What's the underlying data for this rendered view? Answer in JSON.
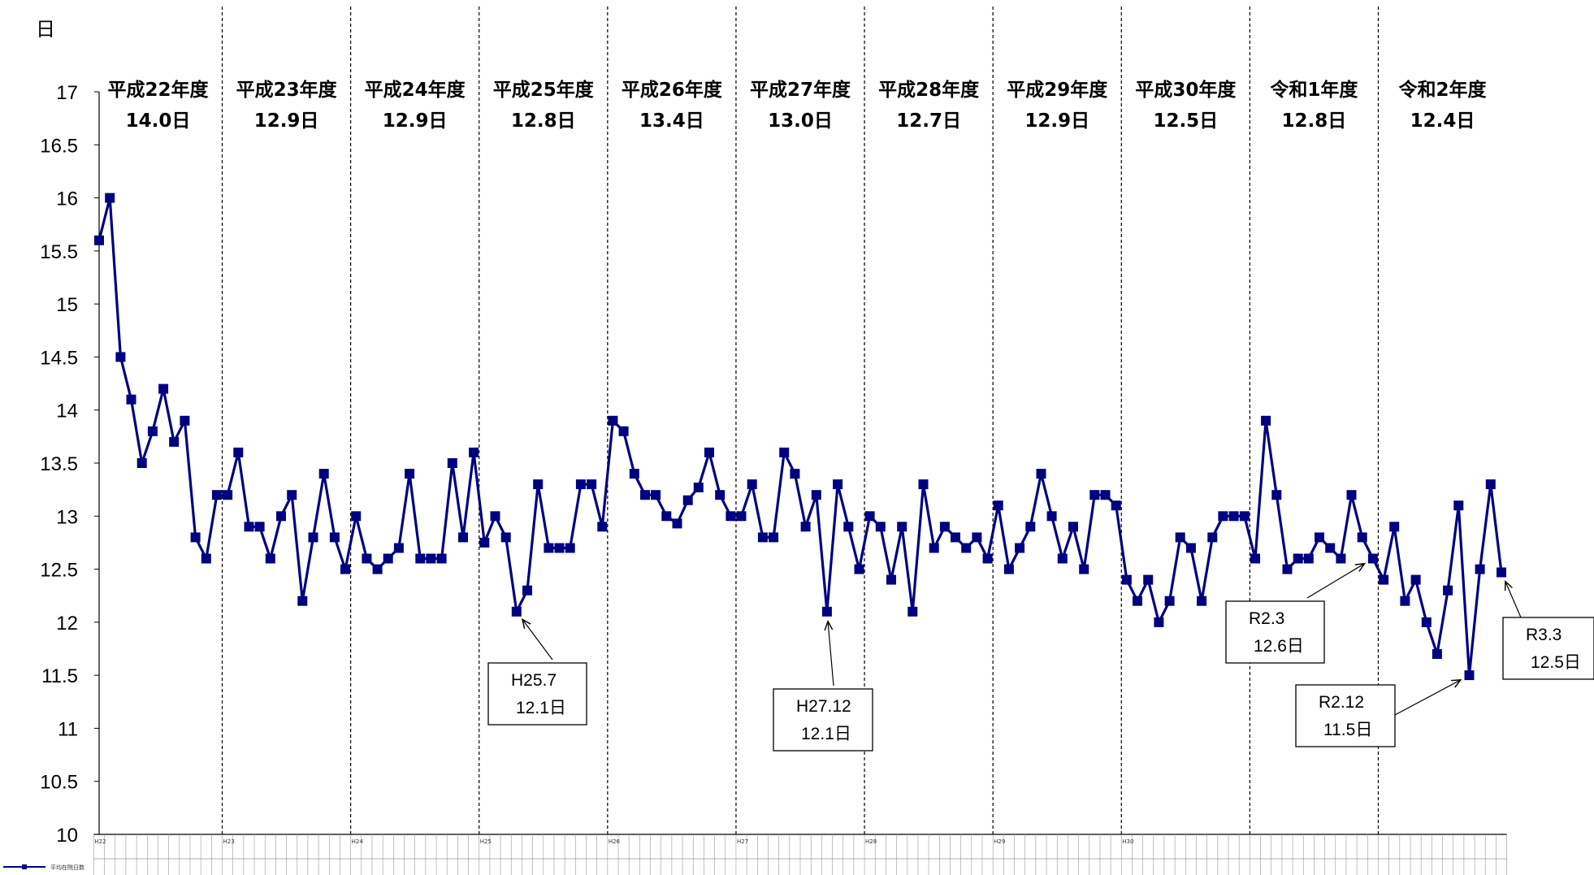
{
  "chart_data": {
    "type": "line",
    "unit_label": "日",
    "ylim": [
      10,
      17
    ],
    "y_ticks": [
      "10",
      "10.5",
      "11",
      "11.5",
      "12",
      "12.5",
      "13",
      "13.5",
      "14",
      "14.5",
      "15",
      "15.5",
      "16",
      "16.5",
      "17"
    ],
    "series": [
      {
        "name": "平均在院日数",
        "color": "#000080",
        "values": [
          15.6,
          16.0,
          14.5,
          14.1,
          13.5,
          13.8,
          14.2,
          13.7,
          13.9,
          12.8,
          12.6,
          13.2,
          13.2,
          13.6,
          12.9,
          12.9,
          12.6,
          13.0,
          13.2,
          12.2,
          12.8,
          13.4,
          12.8,
          12.5,
          13.0,
          12.6,
          12.5,
          12.6,
          12.7,
          13.4,
          12.6,
          12.6,
          12.6,
          13.5,
          12.8,
          13.6,
          12.75,
          13.0,
          12.8,
          12.1,
          12.3,
          13.3,
          12.7,
          12.7,
          12.7,
          13.3,
          13.3,
          12.9,
          13.9,
          13.8,
          13.4,
          13.2,
          13.2,
          13.0,
          12.93,
          13.15,
          13.27,
          13.6,
          13.2,
          13.0,
          13.0,
          13.3,
          12.8,
          12.8,
          13.6,
          13.4,
          12.9,
          13.2,
          12.1,
          13.3,
          12.9,
          12.5,
          13.0,
          12.9,
          12.4,
          12.9,
          12.1,
          13.3,
          12.7,
          12.9,
          12.8,
          12.7,
          12.8,
          12.6,
          13.1,
          12.5,
          12.7,
          12.9,
          13.4,
          13.0,
          12.6,
          12.9,
          12.5,
          13.2,
          13.2,
          13.1,
          12.4,
          12.2,
          12.4,
          12.0,
          12.2,
          12.8,
          12.7,
          12.2,
          12.8,
          13.0,
          13.0,
          13.0,
          12.6,
          13.9,
          13.2,
          12.5,
          12.6,
          12.6,
          12.8,
          12.7,
          12.6,
          13.2,
          12.8,
          12.6,
          12.4,
          12.9,
          12.2,
          12.4,
          12.0,
          11.7,
          12.3,
          13.1,
          11.5,
          12.5,
          13.3,
          12.47
        ]
      }
    ],
    "fiscal_years": [
      {
        "name": "平成22年度",
        "avg": "14.0日"
      },
      {
        "name": "平成23年度",
        "avg": "12.9日"
      },
      {
        "name": "平成24年度",
        "avg": "12.9日"
      },
      {
        "name": "平成25年度",
        "avg": "12.8日"
      },
      {
        "name": "平成26年度",
        "avg": "13.4日"
      },
      {
        "name": "平成27年度",
        "avg": "13.0日"
      },
      {
        "name": "平成28年度",
        "avg": "12.7日"
      },
      {
        "name": "平成29年度",
        "avg": "12.9日"
      },
      {
        "name": "平成30年度",
        "avg": "12.5日"
      },
      {
        "name": "令和1年度",
        "avg": "12.8日"
      },
      {
        "name": "令和2年度",
        "avg": "12.4日"
      }
    ],
    "fy_year_tags": [
      "H22",
      "H23",
      "H24",
      "H25",
      "H26",
      "H27",
      "H28",
      "H29",
      "H30",
      "",
      ""
    ],
    "annotations": [
      {
        "period": "H25.7",
        "value": "12.1日",
        "index": 39
      },
      {
        "period": "H27.12",
        "value": "12.1日",
        "index": 68
      },
      {
        "period": "R2.3",
        "value": "12.6日",
        "index": 119
      },
      {
        "period": "R2.12",
        "value": "11.5日",
        "index": 128
      },
      {
        "period": "R3.3",
        "value": "12.5日",
        "index": 131
      }
    ],
    "legend": {
      "label": "平均在院日数",
      "position": "bottom-left"
    },
    "grid": false
  }
}
